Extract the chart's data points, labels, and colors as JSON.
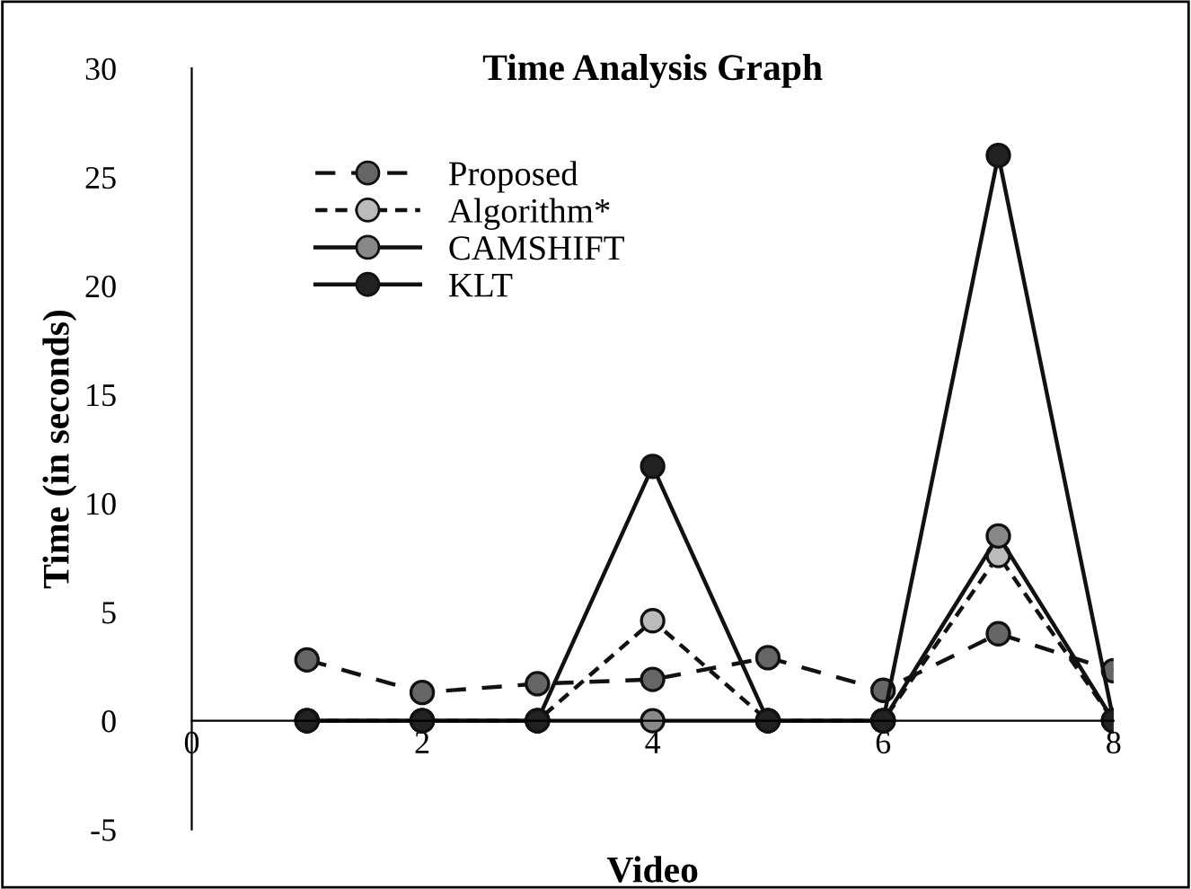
{
  "chart_data": {
    "type": "line",
    "title": "Time Analysis Graph",
    "xlabel": "Video",
    "ylabel": "Time (in seconds)",
    "x": [
      1,
      2,
      3,
      4,
      5,
      6,
      7,
      8
    ],
    "series": [
      {
        "name": "Proposed",
        "color": "#111111",
        "colors": [
          "#666666",
          "#666666",
          "#666666",
          "#666666",
          "#666666",
          "#666666",
          "#666666",
          "#666666"
        ],
        "line_style": "dashed",
        "values": [
          2.8,
          1.3,
          1.7,
          1.9,
          2.9,
          1.4,
          4.0,
          2.3
        ]
      },
      {
        "name": "Algorithm*",
        "color": "#111111",
        "colors": [
          "#bbbbbb",
          "#bbbbbb",
          "#bbbbbb",
          "#bbbbbb",
          "#bbbbbb",
          "#bbbbbb",
          "#bbbbbb",
          "#bbbbbb"
        ],
        "line_style": "dotted",
        "values": [
          0,
          0,
          0,
          4.6,
          0,
          0,
          7.6,
          0
        ]
      },
      {
        "name": "CAMSHIFT",
        "color": "#111111",
        "colors": [
          "#888888",
          "#888888",
          "#888888",
          "#888888",
          "#888888",
          "#888888",
          "#888888",
          "#888888"
        ],
        "line_style": "solid",
        "values": [
          0,
          0,
          0,
          0,
          0,
          0,
          8.5,
          0
        ]
      },
      {
        "name": "KLT",
        "color": "#111111",
        "colors": [
          "#222222",
          "#222222",
          "#222222",
          "#222222",
          "#222222",
          "#222222",
          "#222222",
          "#222222"
        ],
        "line_style": "solid",
        "values": [
          0,
          0,
          0,
          11.7,
          0,
          0,
          26,
          0
        ]
      }
    ],
    "xlim": [
      0,
      8
    ],
    "xticks": [
      0,
      2,
      4,
      6,
      8
    ],
    "ylim": [
      -5,
      30
    ],
    "yticks": [
      -5,
      0,
      5,
      10,
      15,
      20,
      25,
      30
    ],
    "marker": "circle",
    "legend": "top left",
    "grid": false
  }
}
